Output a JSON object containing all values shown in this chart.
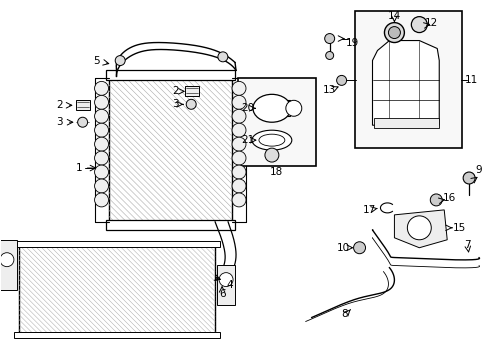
{
  "bg_color": "#ffffff",
  "line_color": "#000000",
  "hatch_color": "#888888",
  "label_fontsize": 7.5,
  "arrow_lw": 0.7,
  "figsize": [
    4.89,
    3.6
  ],
  "dpi": 100
}
